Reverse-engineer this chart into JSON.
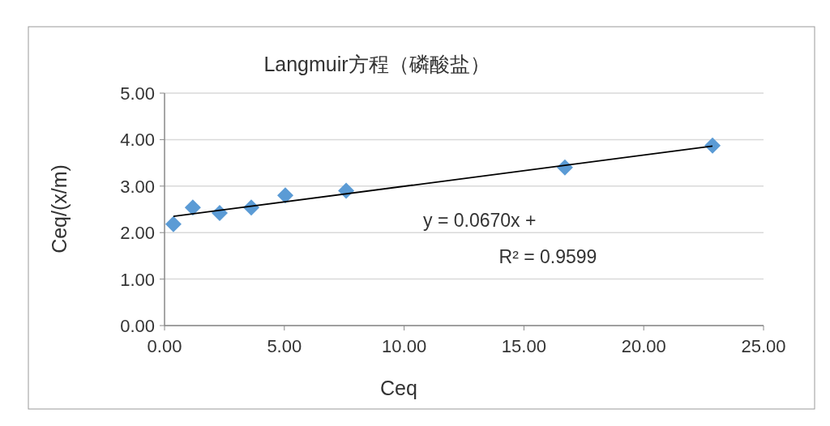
{
  "chart_data": {
    "type": "scatter",
    "title": "Langmuir方程（磷酸盐）",
    "xlabel": "Ceq",
    "ylabel": "Ceq/(x/m)",
    "xlim": [
      0,
      25
    ],
    "ylim": [
      0,
      5
    ],
    "xticks": [
      {
        "value": 0,
        "label": "0.00"
      },
      {
        "value": 5,
        "label": "5.00"
      },
      {
        "value": 10,
        "label": "10.00"
      },
      {
        "value": 15,
        "label": "15.00"
      },
      {
        "value": 20,
        "label": "20.00"
      },
      {
        "value": 25,
        "label": "25.00"
      }
    ],
    "yticks": [
      {
        "value": 0,
        "label": "0.00"
      },
      {
        "value": 1,
        "label": "1.00"
      },
      {
        "value": 2,
        "label": "2.00"
      },
      {
        "value": 3,
        "label": "3.00"
      },
      {
        "value": 4,
        "label": "4.00"
      },
      {
        "value": 5,
        "label": "5.00"
      }
    ],
    "grid": "y",
    "series": [
      {
        "type": "scatter",
        "color": "#5b9bd5",
        "marker": "diamond",
        "x": [
          0.37,
          1.18,
          2.3,
          3.62,
          5.04,
          7.58,
          16.71,
          22.87
        ],
        "values": [
          2.18,
          2.54,
          2.42,
          2.54,
          2.8,
          2.9,
          3.4,
          3.87
        ]
      },
      {
        "type": "line",
        "color": "#000000",
        "line_style": "solid",
        "x": [
          0.37,
          22.87
        ],
        "values": [
          2.35,
          3.86
        ]
      }
    ],
    "annotations": [
      "y = 0.0670x +",
      "R² = 0.9599"
    ]
  }
}
